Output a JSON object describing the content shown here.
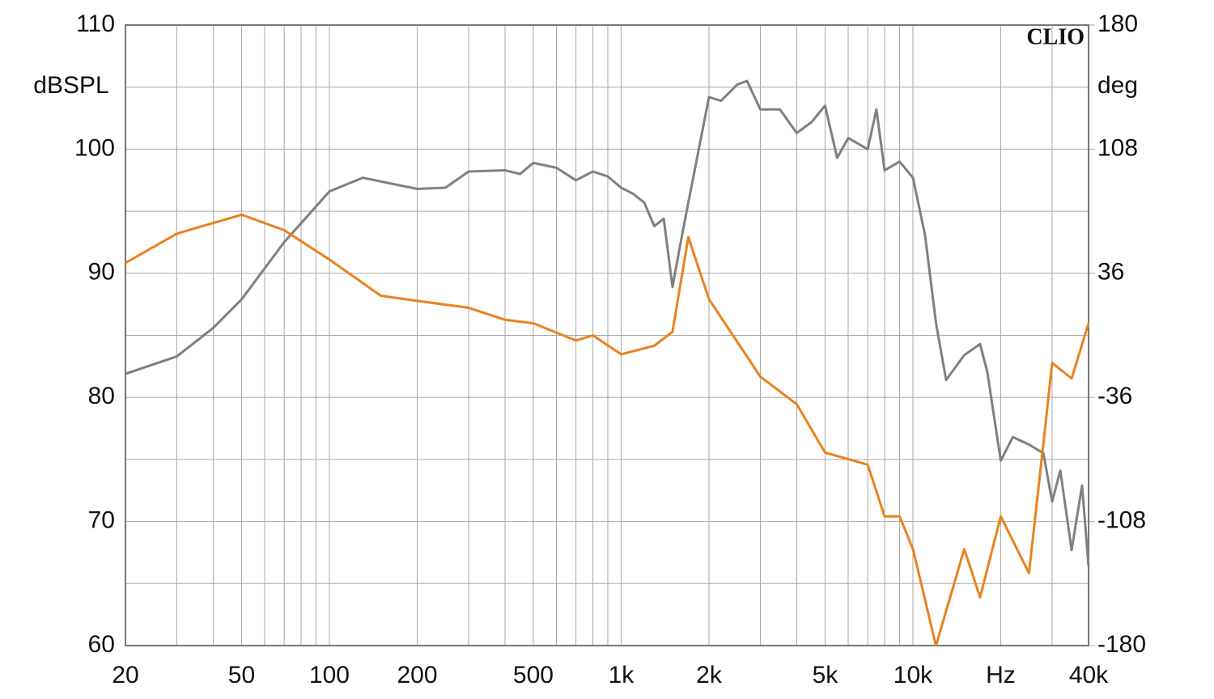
{
  "chart_data": {
    "type": "line",
    "brand": "CLIO",
    "ylabel": "dBSPL",
    "y2label": "deg",
    "log_x": true,
    "grid": true,
    "xlim": [
      20,
      40000
    ],
    "xticks": [
      20,
      50,
      100,
      200,
      500,
      {
        "value": 1000,
        "label": "1k"
      },
      {
        "value": 2000,
        "label": "2k"
      },
      {
        "value": 5000,
        "label": "5k"
      },
      {
        "value": 10000,
        "label": "10k"
      },
      {
        "value": 20000,
        "label": "Hz"
      },
      {
        "value": 40000,
        "label": "40k"
      }
    ],
    "x_minor_grid": [
      30,
      40,
      60,
      70,
      80,
      90,
      300,
      400,
      600,
      700,
      800,
      900,
      3000,
      4000,
      6000,
      7000,
      8000,
      9000,
      30000
    ],
    "ylim": [
      60,
      110
    ],
    "yticks": [
      60,
      70,
      80,
      90,
      100,
      110
    ],
    "y_minor_grid": [
      65,
      75,
      85,
      95,
      105
    ],
    "y2lim": [
      -180,
      180
    ],
    "y2ticks": [
      -180,
      -108,
      -36,
      36,
      108,
      180
    ],
    "series": [
      {
        "color": "#808080",
        "x": [
          20,
          30,
          40,
          50,
          70,
          100,
          130,
          200,
          250,
          300,
          400,
          450,
          500,
          600,
          700,
          800,
          900,
          1000,
          1100,
          1200,
          1300,
          1400,
          1500,
          1600,
          1700,
          2000,
          2200,
          2500,
          2700,
          3000,
          3500,
          4000,
          4500,
          5000,
          5500,
          6000,
          7000,
          7500,
          8000,
          9000,
          10000,
          11000,
          12000,
          13000,
          15000,
          17000,
          18000,
          20000,
          22000,
          25000,
          28000,
          30000,
          32000,
          35000,
          38000,
          40000
        ],
        "values": [
          81.9,
          83.3,
          85.6,
          87.9,
          92.5,
          96.6,
          97.7,
          96.8,
          96.9,
          98.2,
          98.3,
          98.0,
          98.9,
          98.5,
          97.5,
          98.2,
          97.8,
          96.9,
          96.4,
          95.7,
          93.8,
          94.4,
          88.9,
          92.5,
          95.7,
          104.2,
          103.9,
          105.2,
          105.5,
          103.2,
          103.2,
          101.3,
          102.2,
          103.5,
          99.3,
          100.9,
          100.0,
          103.2,
          98.3,
          99.0,
          97.7,
          93.1,
          86.0,
          81.4,
          83.4,
          84.3,
          82.0,
          74.9,
          76.8,
          76.2,
          75.5,
          71.6,
          74.1,
          67.7,
          72.9,
          66.4
        ]
      },
      {
        "color": "#e8821e",
        "axis": "y2",
        "x": [
          20,
          30,
          50,
          70,
          100,
          150,
          200,
          300,
          400,
          500,
          700,
          800,
          1000,
          1300,
          1500,
          1700,
          2000,
          3000,
          4000,
          5000,
          7000,
          8000,
          9000,
          10000,
          12000,
          15000,
          17000,
          20000,
          25000,
          28000,
          30000,
          35000,
          40000
        ],
        "values": [
          42,
          59,
          70,
          61,
          44,
          23,
          20,
          16,
          9,
          7,
          -3,
          0,
          -11,
          -6,
          2,
          57,
          21,
          -24,
          -40,
          -68,
          -75,
          -105,
          -105,
          -124,
          -180,
          -124,
          -152,
          -105,
          -138,
          -63,
          -16,
          -25,
          7
        ]
      }
    ]
  }
}
